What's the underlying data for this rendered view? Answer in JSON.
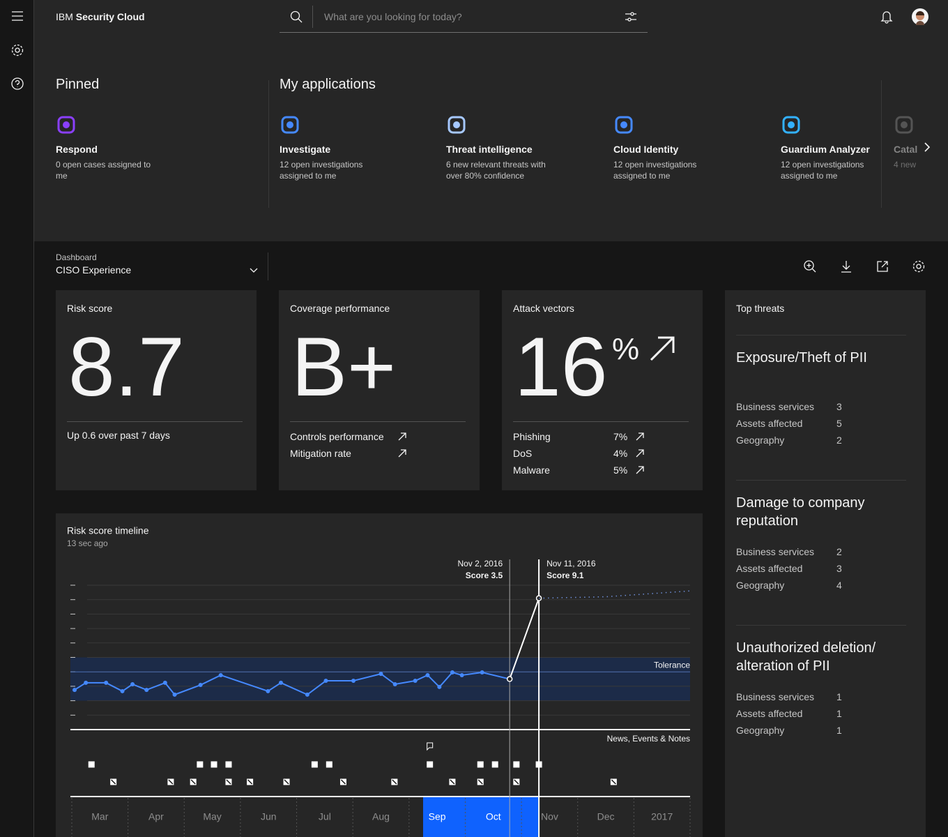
{
  "header": {
    "brand_prefix": "IBM",
    "brand": "Security Cloud",
    "search_placeholder": "What are you looking for today?"
  },
  "pinned": {
    "title": "Pinned",
    "apps": [
      {
        "name": "Respond",
        "description": "0 open cases assigned to me"
      }
    ]
  },
  "my_applications": {
    "title": "My applications",
    "apps": [
      {
        "name": "Investigate",
        "description": "12 open investigations assigned to me"
      },
      {
        "name": "Threat intelligence",
        "description": "6 new relevant threats with over 80% confidence"
      },
      {
        "name": "Cloud Identity",
        "description": "12 open investigations assigned to me"
      },
      {
        "name": "Guardium Analyzer",
        "description": "12 open investigations assigned to me"
      },
      {
        "name": "Catal",
        "description": "4 new"
      }
    ]
  },
  "dashboard": {
    "label": "Dashboard",
    "selected": "CISO Experience"
  },
  "risk_score": {
    "title": "Risk score",
    "value": "8.7",
    "note": "Up 0.6 over past 7 days"
  },
  "coverage": {
    "title": "Coverage performance",
    "grade": "B+",
    "rows": [
      "Controls performance",
      "Mitigation rate"
    ]
  },
  "attack_vectors": {
    "title": "Attack vectors",
    "value": "16",
    "unit": "%",
    "rows": [
      {
        "name": "Phishing",
        "value": "7%"
      },
      {
        "name": "DoS",
        "value": "4%"
      },
      {
        "name": "Malware",
        "value": "5%"
      }
    ]
  },
  "top_threats": {
    "title": "Top threats",
    "items": [
      {
        "name": "Exposure/Theft of PII",
        "metrics": [
          {
            "label": "Business services",
            "value": 3
          },
          {
            "label": "Assets affected",
            "value": 5
          },
          {
            "label": "Geography",
            "value": 2
          }
        ]
      },
      {
        "name": "Damage to company reputation",
        "metrics": [
          {
            "label": "Business services",
            "value": 2
          },
          {
            "label": "Assets affected",
            "value": 3
          },
          {
            "label": "Geography",
            "value": 4
          }
        ]
      },
      {
        "name": "Unauthorized deletion/ alteration of PII",
        "metrics": [
          {
            "label": "Business services",
            "value": 1
          },
          {
            "label": "Assets affected",
            "value": 1
          },
          {
            "label": "Geography",
            "value": 1
          }
        ]
      }
    ]
  },
  "chart_data": {
    "type": "line",
    "title": "Risk score timeline",
    "subtitle": "13 sec ago",
    "categories": [
      "Mar",
      "Apr",
      "May",
      "Jun",
      "Jul",
      "Aug",
      "Sep",
      "Oct",
      "Nov",
      "Dec",
      "2017"
    ],
    "xlim": [
      0,
      11
    ],
    "ylim": [
      0,
      10
    ],
    "yticks": [
      1,
      2,
      3,
      4,
      5,
      6,
      7,
      8,
      9,
      10
    ],
    "grid": true,
    "series": [
      {
        "color": "#4589ff",
        "marker": "dot",
        "x": [
          0.05,
          0.25,
          0.61,
          0.9,
          1.08,
          1.33,
          1.66,
          1.83,
          2.29,
          2.65,
          3.49,
          3.72,
          4.19,
          4.52,
          5.01,
          5.5,
          5.75,
          6.11,
          6.33,
          6.54,
          6.77,
          6.94,
          7.3,
          7.79
        ],
        "values": [
          2.75,
          3.24,
          3.24,
          2.66,
          3.14,
          2.75,
          3.24,
          2.42,
          3.09,
          3.77,
          2.66,
          3.24,
          2.42,
          3.38,
          3.38,
          3.86,
          3.14,
          3.38,
          3.77,
          2.95,
          3.96,
          3.77,
          3.96,
          3.5
        ]
      },
      {
        "color": "#ffffff",
        "marker": "ring",
        "x": [
          7.79,
          8.31
        ],
        "values": [
          3.5,
          9.1
        ]
      },
      {
        "color": "#6f8fd8",
        "dash": "dotted",
        "x": [
          8.31,
          9.5,
          10.99
        ],
        "values": [
          9.1,
          9.2,
          9.6
        ]
      }
    ],
    "tolerance": {
      "label": "Tolerance",
      "value": 4,
      "band": [
        2,
        5
      ]
    },
    "markers": [
      {
        "x": 7.79,
        "date": "Nov 2, 2016",
        "label": "Score 3.5",
        "color": "#a8a8a8"
      },
      {
        "x": 8.31,
        "date": "Nov 11, 2016",
        "label": "Score 9.1",
        "color": "#ffffff"
      }
    ],
    "selection": [
      6.25,
      8.31
    ],
    "events": {
      "title": "News, Events & Notes",
      "rows": [
        {
          "x": [
            0.35,
            2.28,
            2.53,
            2.79,
            4.32,
            4.58,
            6.37,
            7.27,
            7.53,
            7.91,
            8.31
          ]
        },
        {
          "x": [
            0.74,
            1.76,
            2.16,
            2.79,
            3.17,
            3.82,
            4.83,
            5.74,
            6.77,
            7.27,
            7.91,
            9.64
          ]
        }
      ],
      "notes_x": [
        6.37
      ]
    }
  }
}
